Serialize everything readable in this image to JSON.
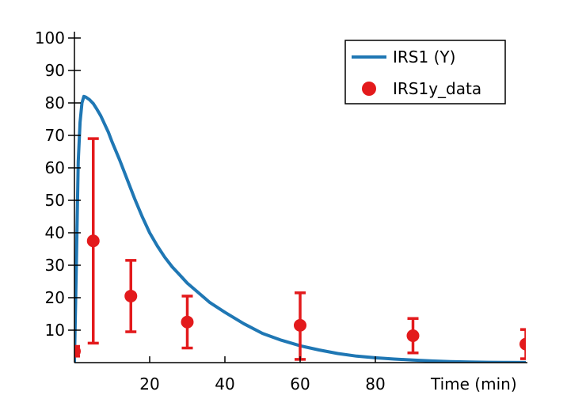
{
  "chart_data": {
    "type": "line",
    "title": "",
    "xlabel": "Time (min)",
    "ylabel": "",
    "xlim": [
      0,
      120
    ],
    "ylim": [
      0,
      100
    ],
    "xticks": [
      20,
      40,
      60,
      80
    ],
    "yticks": [
      10,
      20,
      30,
      40,
      50,
      60,
      70,
      80,
      90,
      100
    ],
    "grid": false,
    "legend_position": "top-right",
    "series": [
      {
        "name": "IRS1 (Y)",
        "kind": "line",
        "color": "#1f77b4",
        "x": [
          0,
          0.5,
          1,
          1.5,
          2,
          2.5,
          3,
          4,
          5,
          6,
          7,
          8,
          9,
          10,
          12,
          14,
          16,
          18,
          20,
          22,
          24,
          26,
          28,
          30,
          33,
          36,
          40,
          45,
          50,
          55,
          60,
          65,
          70,
          75,
          80,
          85,
          90,
          95,
          100,
          105,
          110,
          115,
          120
        ],
        "y": [
          0,
          30,
          62,
          74,
          80,
          82,
          81.8,
          81,
          79.8,
          78,
          76,
          73.5,
          71,
          68,
          62.5,
          56.5,
          50.5,
          45,
          40,
          36,
          32.5,
          29.5,
          27,
          24.5,
          21.5,
          18.5,
          15.5,
          12,
          9,
          6.9,
          5.2,
          3.9,
          2.8,
          2.0,
          1.5,
          1.1,
          0.8,
          0.5,
          0.3,
          0.2,
          0.1,
          0.05,
          0.02
        ]
      },
      {
        "name": "IRS1y_data",
        "kind": "errorbar",
        "color": "#e31a1c",
        "x": [
          0,
          5,
          15,
          30,
          60,
          90,
          120
        ],
        "y": [
          3.5,
          37.5,
          20.5,
          12.5,
          11.5,
          8.3,
          5.7
        ],
        "err_low": [
          1.5,
          31.5,
          11,
          8,
          10.5,
          5.3,
          4.5
        ],
        "err_high": [
          1.5,
          31.5,
          11,
          8,
          10,
          5.3,
          4.5
        ]
      }
    ]
  }
}
